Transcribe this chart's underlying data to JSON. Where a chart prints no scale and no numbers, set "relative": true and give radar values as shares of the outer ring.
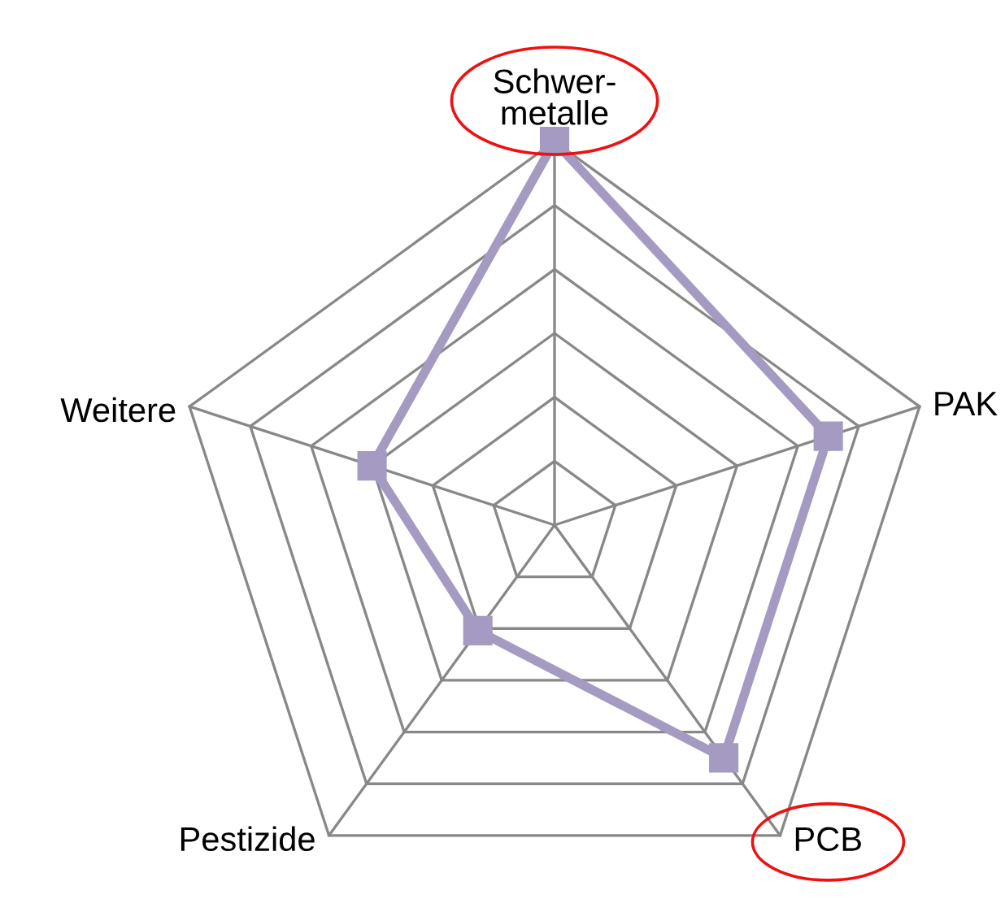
{
  "chart_data": {
    "type": "radar",
    "relative": true,
    "categories": [
      "Schwer-\nmetalle",
      "PAK",
      "PCB",
      "Pestizide",
      "Weitere"
    ],
    "series": [
      {
        "color": "#a59bc2",
        "values": [
          1,
          0.75,
          0.75,
          0.34,
          0.5
        ]
      }
    ],
    "marker": "square",
    "line_style": "solid",
    "legend": false
  }
}
